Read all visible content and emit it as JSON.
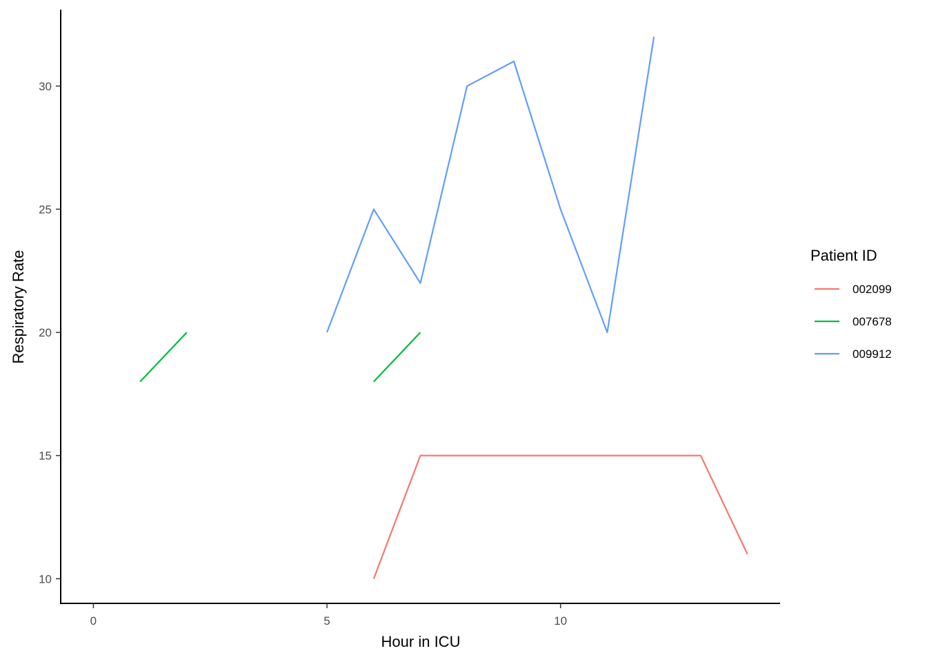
{
  "chart_data": {
    "type": "line",
    "xlabel": "Hour in ICU",
    "ylabel": "Respiratory Rate",
    "xlim": [
      -0.7,
      14.7
    ],
    "ylim": [
      9.0,
      33.1
    ],
    "x_ticks": [
      0,
      5,
      10
    ],
    "y_ticks": [
      10,
      15,
      20,
      25,
      30
    ],
    "grid": false,
    "legend": {
      "title": "Patient ID",
      "placement": "right"
    },
    "series": [
      {
        "name": "002099",
        "color": "#F8766D",
        "segments": [
          [
            [
              6,
              10
            ],
            [
              7,
              15
            ],
            [
              8,
              15
            ],
            [
              9,
              15
            ],
            [
              10,
              15
            ],
            [
              11,
              15
            ],
            [
              12,
              15
            ],
            [
              13,
              15
            ],
            [
              14,
              11
            ]
          ]
        ]
      },
      {
        "name": "007678",
        "color": "#00BA38",
        "segments": [
          [
            [
              1,
              18
            ],
            [
              2,
              20
            ]
          ],
          [
            [
              6,
              18
            ],
            [
              7,
              20
            ]
          ]
        ]
      },
      {
        "name": "009912",
        "color": "#619CFF",
        "segments": [
          [
            [
              5,
              20
            ],
            [
              6,
              25
            ],
            [
              7,
              22
            ],
            [
              8,
              30
            ],
            [
              9,
              31
            ],
            [
              10,
              25
            ],
            [
              11,
              20
            ],
            [
              12,
              32
            ]
          ]
        ]
      }
    ]
  }
}
